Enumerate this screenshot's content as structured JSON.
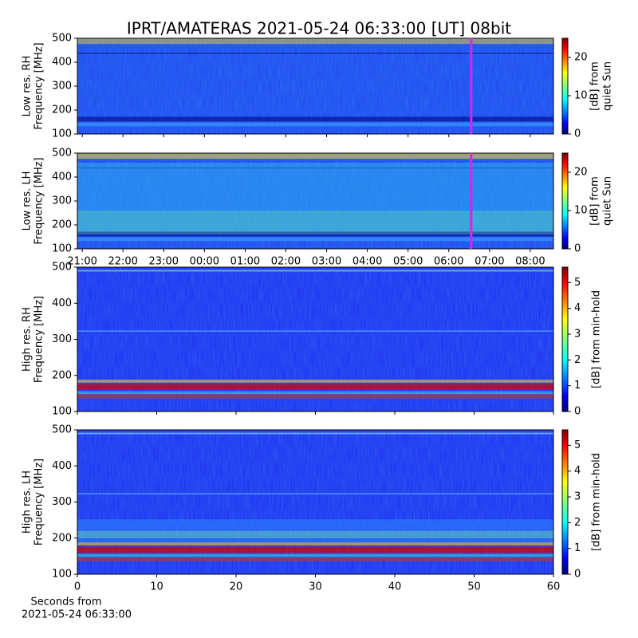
{
  "title": "IPRT/AMATERAS 2021-05-24 06:33:00 [UT]   08bit",
  "xlabel": [
    "Seconds from",
    "2021-05-24 06:33:00"
  ],
  "chart_data": [
    {
      "type": "heatmap",
      "ylabel": [
        "Low res. RH",
        "Frequency [MHz]"
      ],
      "ylim": [
        100,
        500
      ],
      "yticks": [
        100,
        200,
        300,
        400,
        500
      ],
      "xlim": [
        20.88,
        32.57
      ],
      "xticks": [
        21,
        22,
        23,
        24,
        25,
        26,
        27,
        28,
        29,
        30,
        31,
        32
      ],
      "show_xtick_labels": false,
      "marker": 30.55,
      "marker_color": "#e81ee8",
      "colorbar_label": [
        "[dB] from",
        "quiet Sun"
      ],
      "clim": [
        0,
        25
      ],
      "cticks": [
        0,
        10,
        20
      ]
    },
    {
      "type": "heatmap",
      "ylabel": [
        "Low res. LH",
        "Frequency [MHz]"
      ],
      "ylim": [
        100,
        500
      ],
      "yticks": [
        100,
        200,
        300,
        400,
        500
      ],
      "xlim": [
        20.88,
        32.57
      ],
      "xticks": [
        {
          "value": 21,
          "label": "21:00"
        },
        {
          "value": 22,
          "label": "22:00"
        },
        {
          "value": 23,
          "label": "23:00"
        },
        {
          "value": 24,
          "label": "00:00"
        },
        {
          "value": 25,
          "label": "01:00"
        },
        {
          "value": 26,
          "label": "02:00"
        },
        {
          "value": 27,
          "label": "03:00"
        },
        {
          "value": 28,
          "label": "04:00"
        },
        {
          "value": 29,
          "label": "05:00"
        },
        {
          "value": 30,
          "label": "06:00"
        },
        {
          "value": 31,
          "label": "07:00"
        },
        {
          "value": 32,
          "label": "08:00"
        }
      ],
      "show_xtick_labels": true,
      "marker": 30.55,
      "marker_color": "#e81ee8",
      "colorbar_label": [
        "[dB] from",
        "quiet Sun"
      ],
      "clim": [
        0,
        25
      ],
      "cticks": [
        0,
        10,
        20
      ]
    },
    {
      "type": "heatmap",
      "ylabel": [
        "High res. RH",
        "Frequency [MHz]"
      ],
      "ylim": [
        100,
        500
      ],
      "yticks": [
        100,
        200,
        300,
        400,
        500
      ],
      "xlim": [
        0,
        60
      ],
      "xticks": [
        0,
        10,
        20,
        30,
        40,
        50,
        60
      ],
      "show_xtick_labels": false,
      "colorbar_label": [
        "[dB] from min-hold"
      ],
      "clim": [
        0,
        5.6
      ],
      "cticks": [
        0,
        1,
        2,
        3,
        4,
        5
      ]
    },
    {
      "type": "heatmap",
      "ylabel": [
        "High res. LH",
        "Frequency [MHz]"
      ],
      "ylim": [
        100,
        500
      ],
      "yticks": [
        100,
        200,
        300,
        400,
        500
      ],
      "xlim": [
        0,
        60
      ],
      "xticks": [
        0,
        10,
        20,
        30,
        40,
        50,
        60
      ],
      "show_xtick_labels": true,
      "colorbar_label": [
        "[dB] from min-hold"
      ],
      "clim": [
        0,
        5.6
      ],
      "cticks": [
        0,
        1,
        2,
        3,
        4,
        5
      ]
    }
  ]
}
